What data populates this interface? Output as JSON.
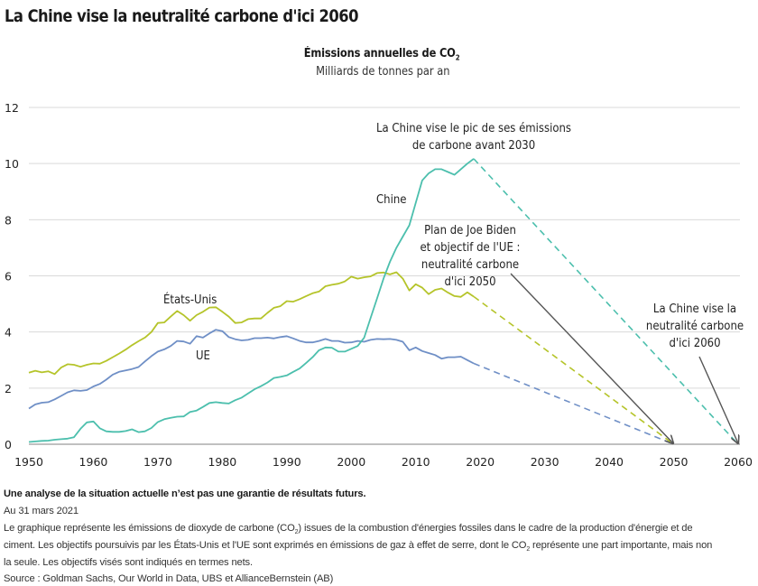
{
  "header": {
    "title": "La Chine vise la neutralité carbone d'ici 2060"
  },
  "chart_data": {
    "type": "line",
    "title": "Émissions annuelles de CO₂",
    "title_main": "Émissions annuelles de CO",
    "title_sub": "2",
    "subtitle": "Milliards de tonnes par an",
    "xlabel": "",
    "ylabel": "Milliards de tonnes par an",
    "xlim": [
      1950,
      2060
    ],
    "ylim": [
      0,
      12
    ],
    "x_ticks": [
      1950,
      1960,
      1970,
      1980,
      1990,
      2000,
      2010,
      2020,
      2030,
      2040,
      2050,
      2060
    ],
    "y_ticks": [
      0,
      2,
      4,
      6,
      8,
      10,
      12
    ],
    "grid": true,
    "legend": "none (direct labels)",
    "colors": {
      "chine": "#4cbfad",
      "etats_unis": "#b5c42a",
      "ue": "#6f8fc6",
      "arrow": "#555555",
      "grid": "#d9d9d9",
      "axis": "#9a9a9a"
    },
    "series": [
      {
        "key": "chine",
        "name": "Chine",
        "x": [
          1950,
          1951,
          1952,
          1953,
          1954,
          1955,
          1956,
          1957,
          1958,
          1959,
          1960,
          1961,
          1962,
          1963,
          1964,
          1965,
          1966,
          1967,
          1968,
          1969,
          1970,
          1971,
          1972,
          1973,
          1974,
          1975,
          1976,
          1977,
          1978,
          1979,
          1980,
          1981,
          1982,
          1983,
          1984,
          1985,
          1986,
          1987,
          1988,
          1989,
          1990,
          1991,
          1992,
          1993,
          1994,
          1995,
          1996,
          1997,
          1998,
          1999,
          2000,
          2001,
          2002,
          2003,
          2004,
          2005,
          2006,
          2007,
          2008,
          2009,
          2010,
          2011,
          2012,
          2013,
          2014,
          2015,
          2016,
          2017,
          2018,
          2019
        ],
        "values": [
          0.08,
          0.1,
          0.12,
          0.13,
          0.16,
          0.18,
          0.2,
          0.25,
          0.55,
          0.78,
          0.81,
          0.57,
          0.46,
          0.44,
          0.44,
          0.47,
          0.53,
          0.43,
          0.46,
          0.58,
          0.79,
          0.89,
          0.94,
          0.98,
          0.99,
          1.15,
          1.2,
          1.33,
          1.47,
          1.5,
          1.47,
          1.45,
          1.57,
          1.66,
          1.81,
          1.96,
          2.07,
          2.2,
          2.36,
          2.4,
          2.45,
          2.58,
          2.7,
          2.9,
          3.1,
          3.35,
          3.45,
          3.44,
          3.3,
          3.3,
          3.4,
          3.5,
          3.8,
          4.5,
          5.2,
          5.9,
          6.5,
          7.0,
          7.4,
          7.8,
          8.6,
          9.4,
          9.65,
          9.8,
          9.8,
          9.7,
          9.6,
          9.8,
          10.0,
          10.17
        ],
        "projection": {
          "x": [
            2019,
            2060
          ],
          "values": [
            10.17,
            0
          ]
        }
      },
      {
        "key": "etats_unis",
        "name": "États-Unis",
        "x": [
          1950,
          1951,
          1952,
          1953,
          1954,
          1955,
          1956,
          1957,
          1958,
          1959,
          1960,
          1961,
          1962,
          1963,
          1964,
          1965,
          1966,
          1967,
          1968,
          1969,
          1970,
          1971,
          1972,
          1973,
          1974,
          1975,
          1976,
          1977,
          1978,
          1979,
          1980,
          1981,
          1982,
          1983,
          1984,
          1985,
          1986,
          1987,
          1988,
          1989,
          1990,
          1991,
          1992,
          1993,
          1994,
          1995,
          1996,
          1997,
          1998,
          1999,
          2000,
          2001,
          2002,
          2003,
          2004,
          2005,
          2006,
          2007,
          2008,
          2009,
          2010,
          2011,
          2012,
          2013,
          2014,
          2015,
          2016,
          2017,
          2018,
          2019
        ],
        "values": [
          2.55,
          2.62,
          2.56,
          2.6,
          2.5,
          2.73,
          2.85,
          2.83,
          2.76,
          2.83,
          2.88,
          2.87,
          2.97,
          3.1,
          3.23,
          3.37,
          3.53,
          3.67,
          3.8,
          4.0,
          4.32,
          4.34,
          4.55,
          4.75,
          4.6,
          4.4,
          4.6,
          4.72,
          4.87,
          4.88,
          4.72,
          4.55,
          4.32,
          4.34,
          4.46,
          4.48,
          4.48,
          4.68,
          4.86,
          4.92,
          5.1,
          5.08,
          5.17,
          5.28,
          5.38,
          5.44,
          5.63,
          5.68,
          5.72,
          5.8,
          5.97,
          5.9,
          5.95,
          5.98,
          6.1,
          6.12,
          6.05,
          6.13,
          5.9,
          5.48,
          5.7,
          5.58,
          5.35,
          5.5,
          5.55,
          5.4,
          5.28,
          5.25,
          5.41,
          5.26
        ],
        "projection": {
          "x": [
            2019,
            2050
          ],
          "values": [
            5.26,
            0
          ]
        }
      },
      {
        "key": "ue",
        "name": "UE",
        "x": [
          1950,
          1951,
          1952,
          1953,
          1954,
          1955,
          1956,
          1957,
          1958,
          1959,
          1960,
          1961,
          1962,
          1963,
          1964,
          1965,
          1966,
          1967,
          1968,
          1969,
          1970,
          1971,
          1972,
          1973,
          1974,
          1975,
          1976,
          1977,
          1978,
          1979,
          1980,
          1981,
          1982,
          1983,
          1984,
          1985,
          1986,
          1987,
          1988,
          1989,
          1990,
          1991,
          1992,
          1993,
          1994,
          1995,
          1996,
          1997,
          1998,
          1999,
          2000,
          2001,
          2002,
          2003,
          2004,
          2005,
          2006,
          2007,
          2008,
          2009,
          2010,
          2011,
          2012,
          2013,
          2014,
          2015,
          2016,
          2017,
          2018,
          2019
        ],
        "values": [
          1.27,
          1.42,
          1.48,
          1.5,
          1.6,
          1.72,
          1.85,
          1.92,
          1.9,
          1.93,
          2.06,
          2.15,
          2.3,
          2.48,
          2.58,
          2.63,
          2.68,
          2.75,
          2.95,
          3.14,
          3.3,
          3.38,
          3.5,
          3.68,
          3.66,
          3.58,
          3.85,
          3.8,
          3.95,
          4.08,
          4.03,
          3.82,
          3.74,
          3.7,
          3.72,
          3.78,
          3.78,
          3.8,
          3.77,
          3.82,
          3.85,
          3.77,
          3.68,
          3.63,
          3.63,
          3.68,
          3.75,
          3.68,
          3.68,
          3.62,
          3.63,
          3.68,
          3.65,
          3.72,
          3.75,
          3.74,
          3.75,
          3.72,
          3.65,
          3.35,
          3.45,
          3.32,
          3.25,
          3.18,
          3.05,
          3.1,
          3.1,
          3.12,
          3.0,
          2.88
        ],
        "projection": {
          "x": [
            2019,
            2050
          ],
          "values": [
            2.88,
            0
          ]
        }
      }
    ],
    "series_labels": {
      "chine": "Chine",
      "etats_unis": "États-Unis",
      "ue": "UE"
    },
    "annotations": {
      "peak": [
        "La Chine vise le pic de ses émissions",
        "de carbone avant 2030"
      ],
      "biden_eu": [
        "Plan de Joe Biden",
        "et objectif de l'UE :",
        "neutralité carbone",
        "d'ici 2050"
      ],
      "china_2060": [
        "La Chine vise la",
        "neutralité carbone",
        "d'ici 2060"
      ]
    }
  },
  "footer": {
    "disclaimer": "Une analyse de la situation actuelle n’est pas une garantie de résultats futurs.",
    "date": "Au 31 mars 2021",
    "note_line1_a": "Le graphique représente les émissions de dioxyde de carbone (CO",
    "note_line1_sub": "2",
    "note_line1_b": ") issues de la combustion d'énergies fossiles dans le cadre de la production d'énergie et de",
    "note_line2_a": "ciment. Les objectifs poursuivis par les États-Unis et l'UE sont exprimés en émissions de gaz à effet de serre, dont le CO",
    "note_line2_sub": "2",
    "note_line2_b": " représente une part importante, mais non",
    "note_line3": "la seule. Les objectifs visés sont indiqués en termes nets.",
    "source": "Source : Goldman Sachs, Our World in Data, UBS et AllianceBernstein (AB)"
  }
}
